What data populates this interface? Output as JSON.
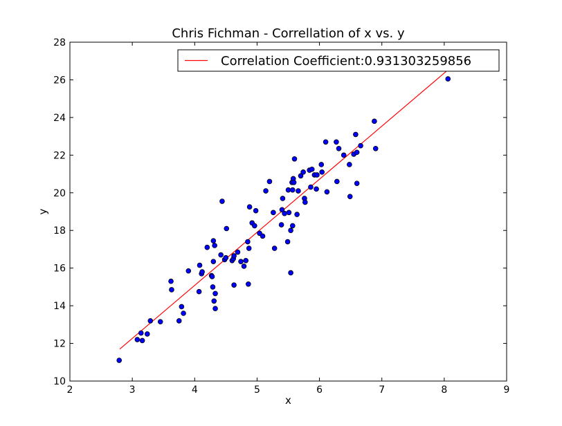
{
  "chart_data": {
    "type": "scatter",
    "title": "Chris Fichman - Correllation of x vs. y",
    "xlabel": "x",
    "ylabel": "y",
    "xlim": [
      2,
      9
    ],
    "ylim": [
      10,
      28
    ],
    "x_ticks": [
      2,
      3,
      4,
      5,
      6,
      7,
      8,
      9
    ],
    "y_ticks": [
      10,
      12,
      14,
      16,
      18,
      20,
      22,
      24,
      26,
      28
    ],
    "grid": false,
    "legend_position": "top-right",
    "colors": {
      "points": "#0000ff",
      "fit_line": "#ff0000"
    },
    "fit_line": {
      "label": "Correlation Coefficient:0.931303259856",
      "x": [
        2.8,
        8.05
      ],
      "y": [
        11.7,
        26.5
      ]
    },
    "points": {
      "x": [
        2.79,
        3.08,
        3.14,
        3.16,
        3.24,
        3.29,
        3.45,
        3.62,
        3.63,
        3.75,
        3.79,
        3.82,
        3.9,
        4.07,
        4.08,
        4.11,
        4.12,
        4.2,
        4.27,
        4.28,
        4.29,
        4.3,
        4.3,
        4.31,
        4.32,
        4.33,
        4.33,
        4.42,
        4.44,
        4.48,
        4.5,
        4.51,
        4.6,
        4.62,
        4.63,
        4.63,
        4.69,
        4.74,
        4.79,
        4.82,
        4.85,
        4.86,
        4.87,
        4.88,
        4.92,
        4.96,
        4.98,
        5.04,
        5.09,
        5.14,
        5.2,
        5.26,
        5.28,
        5.39,
        5.4,
        5.41,
        5.44,
        5.49,
        5.5,
        5.51,
        5.54,
        5.54,
        5.56,
        5.57,
        5.57,
        5.58,
        5.59,
        5.6,
        5.64,
        5.66,
        5.7,
        5.74,
        5.76,
        5.77,
        5.84,
        5.86,
        5.88,
        5.92,
        5.95,
        5.96,
        6.03,
        6.04,
        6.1,
        6.12,
        6.27,
        6.28,
        6.31,
        6.39,
        6.48,
        6.49,
        6.55,
        6.58,
        6.6,
        6.6,
        6.66,
        6.88,
        6.9,
        8.06
      ],
      "y": [
        11.1,
        12.2,
        12.55,
        12.15,
        12.5,
        13.2,
        13.15,
        15.3,
        14.85,
        13.2,
        13.95,
        13.6,
        15.85,
        14.75,
        16.15,
        15.7,
        15.8,
        17.1,
        15.6,
        15.55,
        15.0,
        17.45,
        16.35,
        14.25,
        17.2,
        13.85,
        14.65,
        16.7,
        19.55,
        16.45,
        16.55,
        18.1,
        16.4,
        16.5,
        16.65,
        15.1,
        16.85,
        16.35,
        16.1,
        16.4,
        17.4,
        15.15,
        17.05,
        19.25,
        18.4,
        18.25,
        19.05,
        17.85,
        17.7,
        20.1,
        20.6,
        18.95,
        17.05,
        18.3,
        19.1,
        19.7,
        18.9,
        17.4,
        20.15,
        18.95,
        18.0,
        15.75,
        20.55,
        18.25,
        20.15,
        20.75,
        20.55,
        21.8,
        18.85,
        20.1,
        20.9,
        21.1,
        19.7,
        19.5,
        21.2,
        20.3,
        21.25,
        20.95,
        20.2,
        20.95,
        21.5,
        21.1,
        22.7,
        20.05,
        22.7,
        20.6,
        22.35,
        22.0,
        21.5,
        19.8,
        22.05,
        23.1,
        22.15,
        20.5,
        22.5,
        23.8,
        22.35,
        26.05
      ]
    }
  }
}
